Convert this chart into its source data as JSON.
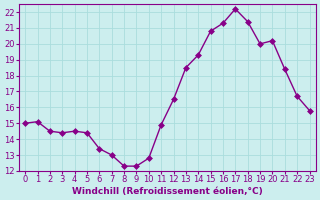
{
  "x": [
    0,
    1,
    2,
    3,
    4,
    5,
    6,
    7,
    8,
    9,
    10,
    11,
    12,
    13,
    14,
    15,
    16,
    17,
    18,
    19,
    20,
    21,
    22,
    23
  ],
  "y": [
    15.0,
    15.1,
    14.5,
    14.4,
    14.5,
    14.4,
    13.4,
    13.0,
    12.3,
    12.3,
    12.8,
    14.9,
    16.5,
    18.5,
    19.3,
    20.8,
    21.3,
    22.2,
    21.4,
    20.0,
    20.2,
    18.4,
    16.7,
    15.8
  ],
  "line_color": "#880088",
  "marker": "D",
  "marker_size": 3,
  "bg_color": "#cceeee",
  "grid_color": "#aadddd",
  "xlabel": "Windchill (Refroidissement éolien,°C)",
  "xlim": [
    -0.5,
    23.5
  ],
  "ylim": [
    12,
    22.5
  ],
  "yticks": [
    12,
    13,
    14,
    15,
    16,
    17,
    18,
    19,
    20,
    21,
    22
  ],
  "xticks": [
    0,
    1,
    2,
    3,
    4,
    5,
    6,
    7,
    8,
    9,
    10,
    11,
    12,
    13,
    14,
    15,
    16,
    17,
    18,
    19,
    20,
    21,
    22,
    23
  ],
  "tick_fontsize": 6,
  "xlabel_fontsize": 6.5
}
